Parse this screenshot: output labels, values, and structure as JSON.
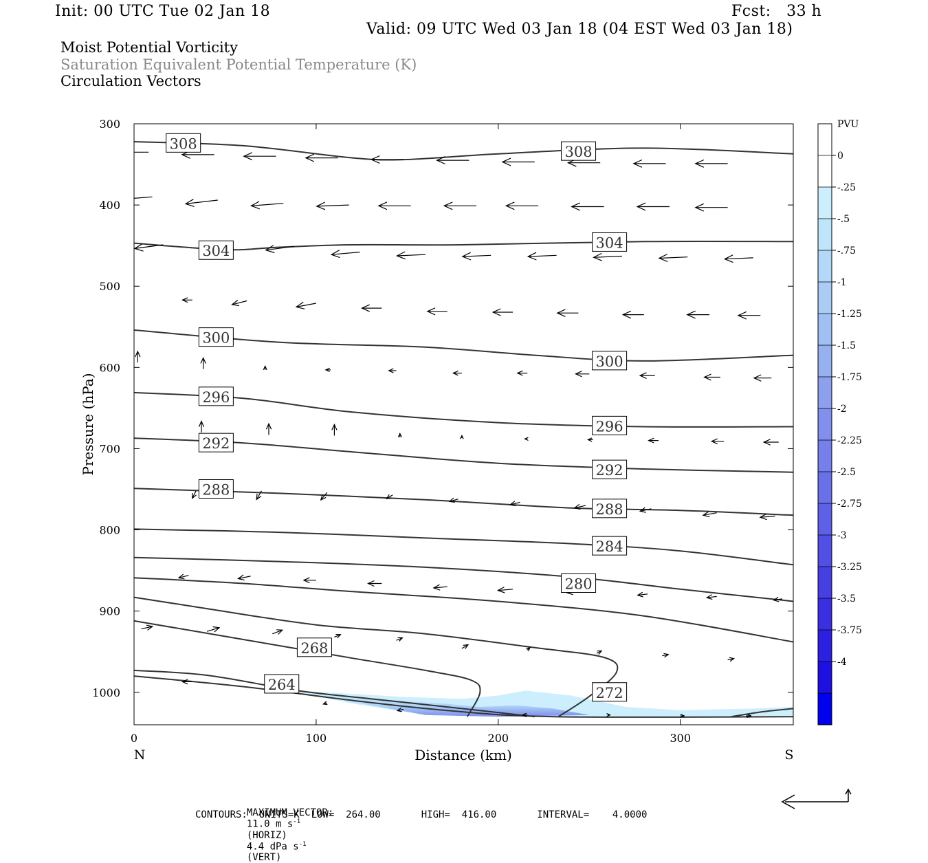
{
  "header": {
    "init": "Init: 00 UTC Tue 02 Jan 18",
    "fcst": "Fcst:   33 h",
    "valid": "Valid: 09 UTC Wed 03 Jan 18 (04 EST Wed 03 Jan 18)"
  },
  "titles": [
    "Moist Potential Vorticity",
    "Saturation Equivalent Potential Temperature (K)",
    "Circulation Vectors"
  ],
  "colors": {
    "title2": "#888888",
    "contour": "#333333",
    "scale": [
      "#ffffff",
      "#ffffff",
      "#cdeefd",
      "#bfe5fb",
      "#b4d8f8",
      "#aaccf5",
      "#a0bff3",
      "#96b0f0",
      "#8ca0ee",
      "#8090ec",
      "#7580ea",
      "#6a70e8",
      "#5e60e6",
      "#5250e4",
      "#4640e3",
      "#3a30e2",
      "#2c20e1",
      "#1e10e0",
      "#0000ee"
    ]
  },
  "footer": {
    "line1_label": "MAXIMUM VECTOR:",
    "line1_horiz": "11.0 m s",
    "line1_horiz_unit": "(HORIZ)",
    "line1_vert": "4.4 dPa s",
    "line1_vert_unit": "(VERT)",
    "superscript": "-1",
    "line2": "CONTOURS:  UNITS=K  LOW=  264.00       HIGH=  416.00       INTERVAL=    4.0000"
  },
  "chart_data": {
    "type": "cross-section",
    "xlabel": "Distance (km)",
    "ylabel": "Pressure (hPa)",
    "xlim": [
      0,
      362
    ],
    "ylim": [
      300,
      1040
    ],
    "x_ticks": [
      "0",
      "100",
      "200",
      "300"
    ],
    "y_ticks": [
      "300",
      "400",
      "500",
      "600",
      "700",
      "800",
      "900",
      "1000"
    ],
    "left_end_label": "N",
    "right_end_label": "S",
    "colorbar": {
      "unit": "PVU",
      "labels": [
        "0",
        "-.25",
        "-.5",
        "-.75",
        "-1",
        "-1.25",
        "-1.5",
        "-1.75",
        "-2",
        "-2.25",
        "-2.5",
        "-2.75",
        "-3",
        "-3.25",
        "-3.5",
        "-3.75",
        "-4"
      ]
    },
    "contours": [
      {
        "level": 308,
        "label": "308",
        "points": [
          [
            0,
            322
          ],
          [
            60,
            327
          ],
          [
            120,
            342
          ],
          [
            150,
            344
          ],
          [
            200,
            337
          ],
          [
            280,
            330
          ],
          [
            362,
            337
          ]
        ],
        "label_pos": [
          [
            18,
            324
          ],
          [
            235,
            334
          ]
        ]
      },
      {
        "level": 304,
        "label": "304",
        "points": [
          [
            0,
            447
          ],
          [
            50,
            455
          ],
          [
            80,
            452
          ],
          [
            120,
            449
          ],
          [
            180,
            449
          ],
          [
            280,
            445
          ],
          [
            362,
            445
          ]
        ],
        "label_pos": [
          [
            36,
            456
          ],
          [
            252,
            446
          ]
        ]
      },
      {
        "level": 300,
        "label": "300",
        "points": [
          [
            0,
            554
          ],
          [
            80,
            569
          ],
          [
            160,
            575
          ],
          [
            220,
            585
          ],
          [
            280,
            592
          ],
          [
            362,
            585
          ]
        ],
        "label_pos": [
          [
            36,
            563
          ],
          [
            252,
            592
          ]
        ]
      },
      {
        "level": 296,
        "label": "296",
        "points": [
          [
            0,
            631
          ],
          [
            60,
            638
          ],
          [
            120,
            655
          ],
          [
            200,
            668
          ],
          [
            280,
            673
          ],
          [
            362,
            673
          ]
        ],
        "label_pos": [
          [
            36,
            636
          ],
          [
            252,
            672
          ]
        ]
      },
      {
        "level": 292,
        "label": "292",
        "points": [
          [
            0,
            687
          ],
          [
            60,
            693
          ],
          [
            120,
            704
          ],
          [
            200,
            718
          ],
          [
            280,
            725
          ],
          [
            362,
            729
          ]
        ],
        "label_pos": [
          [
            36,
            693
          ],
          [
            252,
            726
          ]
        ]
      },
      {
        "level": 288,
        "label": "288",
        "points": [
          [
            0,
            749
          ],
          [
            80,
            755
          ],
          [
            160,
            763
          ],
          [
            240,
            773
          ],
          [
            300,
            776
          ],
          [
            362,
            782
          ]
        ],
        "label_pos": [
          [
            36,
            750
          ],
          [
            252,
            774
          ]
        ]
      },
      {
        "level": 284,
        "label": "284",
        "points": [
          [
            0,
            799
          ],
          [
            80,
            803
          ],
          [
            160,
            810
          ],
          [
            240,
            817
          ],
          [
            300,
            826
          ],
          [
            362,
            843
          ]
        ],
        "label_pos": [
          [
            252,
            820
          ]
        ]
      },
      {
        "level": 280,
        "label": "280",
        "points": [
          [
            0,
            834
          ],
          [
            80,
            839
          ],
          [
            160,
            846
          ],
          [
            240,
            858
          ],
          [
            300,
            873
          ],
          [
            362,
            888
          ]
        ],
        "label_pos": [
          [
            235,
            866
          ]
        ]
      },
      {
        "level": 276,
        "label": "",
        "points": [
          [
            0,
            859
          ],
          [
            60,
            866
          ],
          [
            120,
            876
          ],
          [
            200,
            888
          ],
          [
            280,
            906
          ],
          [
            362,
            938
          ]
        ]
      },
      {
        "level": 272,
        "label": "272",
        "points": [
          [
            0,
            883
          ],
          [
            40,
            897
          ],
          [
            100,
            917
          ],
          [
            160,
            928
          ],
          [
            220,
            945
          ],
          [
            258,
            957
          ],
          [
            265,
            975
          ],
          [
            250,
            1005
          ],
          [
            233,
            1030
          ]
        ],
        "label_pos": [
          [
            252,
            1000
          ]
        ]
      },
      {
        "level": 268,
        "label": "268",
        "points": [
          [
            0,
            912
          ],
          [
            60,
            935
          ],
          [
            120,
            958
          ],
          [
            160,
            973
          ],
          [
            185,
            985
          ],
          [
            190,
            1000
          ],
          [
            183,
            1030
          ]
        ],
        "label_pos": [
          [
            90,
            945
          ]
        ]
      },
      {
        "level": 264,
        "label": "264",
        "points": [
          [
            0,
            973
          ],
          [
            40,
            979
          ],
          [
            90,
            998
          ],
          [
            130,
            1008
          ],
          [
            180,
            1020
          ],
          [
            220,
            1030
          ]
        ],
        "label_pos": [
          [
            72,
            990
          ]
        ]
      },
      {
        "level": 260,
        "label": "",
        "points": [
          [
            0,
            980
          ],
          [
            60,
            993
          ],
          [
            120,
            1010
          ],
          [
            170,
            1022
          ],
          [
            230,
            1030
          ],
          [
            362,
            1030
          ]
        ]
      },
      {
        "level": 276,
        "label": "",
        "points": [
          [
            328,
            1030
          ],
          [
            345,
            1024
          ],
          [
            362,
            1020
          ]
        ]
      }
    ],
    "pv_shading_level": [
      -0.25,
      -1.0
    ],
    "vectors": [
      [
        8,
        335,
        -2.6,
        0
      ],
      [
        44,
        338,
        -2.6,
        0
      ],
      [
        78,
        340,
        -2.6,
        0
      ],
      [
        112,
        342,
        -2.6,
        0
      ],
      [
        148,
        344,
        -2.6,
        0
      ],
      [
        184,
        345,
        -2.6,
        0
      ],
      [
        220,
        347,
        -2.6,
        0
      ],
      [
        256,
        348,
        -2.6,
        0
      ],
      [
        292,
        349,
        -2.6,
        0
      ],
      [
        326,
        349,
        -2.6,
        0
      ],
      [
        10,
        390,
        -2.6,
        0.2
      ],
      [
        46,
        394,
        -2.6,
        0.3
      ],
      [
        82,
        398,
        -2.6,
        0.2
      ],
      [
        118,
        400,
        -2.6,
        0.1
      ],
      [
        152,
        401,
        -2.6,
        0
      ],
      [
        188,
        401,
        -2.6,
        0
      ],
      [
        222,
        401,
        -2.6,
        0
      ],
      [
        258,
        402,
        -2.6,
        0
      ],
      [
        294,
        402,
        -2.6,
        0
      ],
      [
        326,
        403,
        -2.6,
        0
      ],
      [
        16,
        449,
        -2.3,
        0.3
      ],
      [
        52,
        446,
        -2.3,
        0.7
      ],
      [
        88,
        451,
        -2.3,
        0.3
      ],
      [
        124,
        458,
        -2.3,
        0.2
      ],
      [
        160,
        461,
        -2.3,
        0.1
      ],
      [
        196,
        462,
        -2.3,
        0.1
      ],
      [
        232,
        462,
        -2.3,
        0.1
      ],
      [
        268,
        463,
        -2.3,
        0.1
      ],
      [
        304,
        464,
        -2.3,
        0.1
      ],
      [
        340,
        465,
        -2.3,
        0.1
      ],
      [
        32,
        517,
        -0.8,
        0
      ],
      [
        62,
        518,
        -1.2,
        0.3
      ],
      [
        100,
        521,
        -1.6,
        0.3
      ],
      [
        136,
        527,
        -1.6,
        0
      ],
      [
        172,
        531,
        -1.6,
        0
      ],
      [
        208,
        532,
        -1.6,
        0
      ],
      [
        244,
        533,
        -1.7,
        0
      ],
      [
        280,
        535,
        -1.7,
        0
      ],
      [
        316,
        535,
        -1.8,
        0
      ],
      [
        344,
        536,
        -1.8,
        0
      ],
      [
        2,
        594,
        0,
        -0.9
      ],
      [
        38,
        602,
        0,
        -0.9
      ],
      [
        72,
        603,
        0,
        -0.3
      ],
      [
        108,
        603,
        -0.4,
        0
      ],
      [
        144,
        604,
        -0.6,
        0
      ],
      [
        180,
        607,
        -0.7,
        0
      ],
      [
        216,
        607,
        -0.8,
        0
      ],
      [
        250,
        608,
        -1.1,
        0
      ],
      [
        286,
        610,
        -1.2,
        0
      ],
      [
        322,
        612,
        -1.3,
        0
      ],
      [
        350,
        613,
        -1.4,
        0
      ],
      [
        37,
        680,
        0,
        -0.9
      ],
      [
        74,
        683,
        0,
        -0.9
      ],
      [
        110,
        684,
        0,
        -0.9
      ],
      [
        146,
        686,
        0,
        -0.3
      ],
      [
        180,
        687,
        0,
        -0.2
      ],
      [
        216,
        688,
        -0.2,
        0
      ],
      [
        252,
        689,
        -0.4,
        0
      ],
      [
        288,
        690,
        -0.8,
        0
      ],
      [
        324,
        691,
        -1.0,
        0
      ],
      [
        354,
        692,
        -1.2,
        0
      ],
      [
        34,
        752,
        -0.3,
        0.6
      ],
      [
        70,
        752,
        -0.4,
        0.7
      ],
      [
        106,
        754,
        -0.5,
        0.6
      ],
      [
        142,
        757,
        -0.5,
        0.3
      ],
      [
        178,
        762,
        -0.7,
        0.2
      ],
      [
        212,
        766,
        -0.8,
        0.2
      ],
      [
        248,
        770,
        -0.9,
        0.2
      ],
      [
        284,
        774,
        -0.9,
        0.2
      ],
      [
        320,
        779,
        -1.1,
        0.2
      ],
      [
        352,
        783,
        -1.2,
        0.1
      ],
      [
        30,
        856,
        -0.8,
        0.2
      ],
      [
        64,
        857,
        -1.0,
        0.2
      ],
      [
        100,
        862,
        -1.0,
        0
      ],
      [
        136,
        866,
        -1.1,
        0
      ],
      [
        172,
        870,
        -1.1,
        0.1
      ],
      [
        208,
        873,
        -1.2,
        0.1
      ],
      [
        244,
        876,
        -0.9,
        0.1
      ],
      [
        282,
        879,
        -0.8,
        0.1
      ],
      [
        320,
        882,
        -0.8,
        0.1
      ],
      [
        356,
        885,
        -0.7,
        0.1
      ],
      [
        4,
        922,
        0.9,
        -0.2
      ],
      [
        40,
        925,
        1.0,
        -0.3
      ],
      [
        76,
        928,
        0.8,
        -0.3
      ],
      [
        110,
        932,
        0.5,
        -0.2
      ],
      [
        144,
        936,
        0.5,
        -0.2
      ],
      [
        180,
        946,
        0.5,
        -0.3
      ],
      [
        216,
        948,
        0.2,
        -0.2
      ],
      [
        254,
        952,
        0.4,
        -0.2
      ],
      [
        290,
        955,
        0.5,
        -0.1
      ],
      [
        326,
        960,
        0.5,
        -0.1
      ],
      [
        32,
        987,
        -0.8,
        0
      ],
      [
        106,
        1013,
        -0.3,
        0.1
      ],
      [
        148,
        1021,
        -0.5,
        0.1
      ],
      [
        216,
        1028,
        -0.4,
        0
      ],
      [
        260,
        1028,
        0.2,
        0
      ],
      [
        300,
        1029,
        0.3,
        0
      ],
      [
        336,
        1029,
        0.4,
        0
      ]
    ],
    "reference_vector": {
      "horiz": 11.0,
      "vert": 4.4
    }
  }
}
